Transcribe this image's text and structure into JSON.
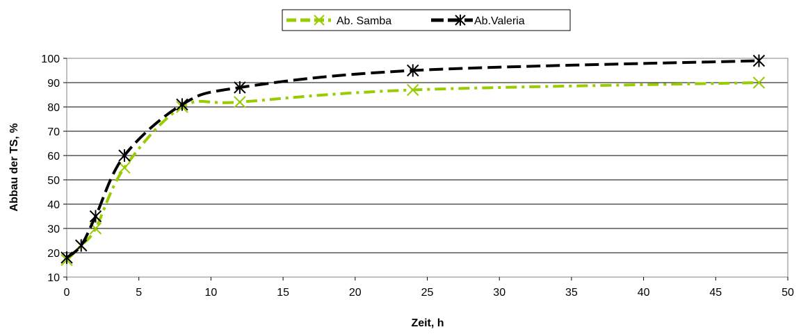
{
  "chart_data": {
    "type": "line",
    "xlabel": "Zeit, h",
    "ylabel": "Abbau der TS, %",
    "xlim": [
      0,
      50
    ],
    "ylim": [
      10,
      100
    ],
    "xticks": [
      "0",
      "5",
      "10",
      "15",
      "20",
      "25",
      "30",
      "35",
      "40",
      "45",
      "50"
    ],
    "yticks": [
      "10",
      "20",
      "30",
      "40",
      "50",
      "60",
      "70",
      "80",
      "90",
      "100"
    ],
    "grid": "horizontal",
    "legend_position": "top-center",
    "series": [
      {
        "name": "Ab. Samba",
        "color": "#99CC00",
        "marker": "x",
        "x": [
          0,
          1,
          2,
          4,
          8,
          12,
          24,
          48
        ],
        "y": [
          17,
          23,
          30,
          55,
          80,
          82,
          87,
          90
        ]
      },
      {
        "name": "Ab.Valeria",
        "color": "#000000",
        "marker": "star",
        "x": [
          0,
          1,
          2,
          4,
          8,
          12,
          24,
          48
        ],
        "y": [
          18,
          23,
          35,
          60,
          81,
          88,
          95,
          99
        ]
      }
    ]
  }
}
